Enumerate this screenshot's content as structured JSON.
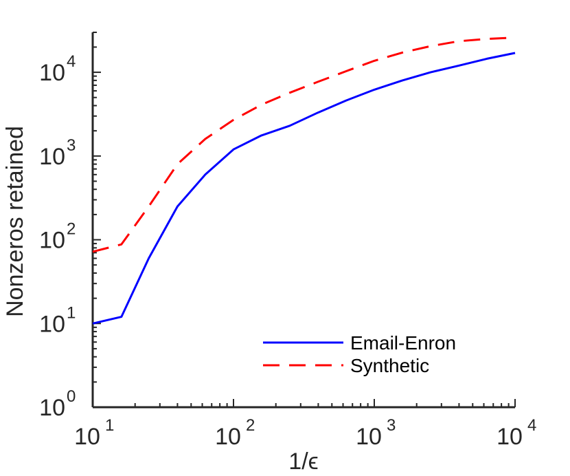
{
  "chart_data": {
    "type": "line",
    "title": "",
    "xlabel": "1/ϵ",
    "ylabel": "Nonzeros retained",
    "x_scale": "log",
    "y_scale": "log",
    "xlim": [
      10,
      10000
    ],
    "ylim": [
      1,
      30000
    ],
    "x_ticks": [
      {
        "base": "10",
        "exp": "1",
        "value": 10
      },
      {
        "base": "10",
        "exp": "2",
        "value": 100
      },
      {
        "base": "10",
        "exp": "3",
        "value": 1000
      },
      {
        "base": "10",
        "exp": "4",
        "value": 10000
      }
    ],
    "y_ticks": [
      {
        "base": "10",
        "exp": "0",
        "value": 1
      },
      {
        "base": "10",
        "exp": "1",
        "value": 10
      },
      {
        "base": "10",
        "exp": "2",
        "value": 100
      },
      {
        "base": "10",
        "exp": "3",
        "value": 1000
      },
      {
        "base": "10",
        "exp": "4",
        "value": 10000
      }
    ],
    "grid": false,
    "legend_position": "bottom-right",
    "series": [
      {
        "name": "Email-Enron",
        "color": "#0000ff",
        "style": "solid",
        "x": [
          10,
          16,
          25,
          40,
          63,
          100,
          158,
          251,
          398,
          631,
          1000,
          1585,
          2512,
          3981,
          6310,
          10000
        ],
        "y": [
          10,
          12,
          60,
          250,
          600,
          1200,
          1760,
          2300,
          3300,
          4600,
          6200,
          8000,
          10000,
          12000,
          14500,
          17000
        ]
      },
      {
        "name": "Synthetic",
        "color": "#ff0000",
        "style": "dashed",
        "x": [
          10,
          16,
          25,
          40,
          63,
          100,
          158,
          251,
          398,
          631,
          1000,
          1585,
          2512,
          3981,
          6310,
          10000
        ],
        "y": [
          72,
          88,
          250,
          800,
          1600,
          2700,
          4100,
          5700,
          7700,
          10300,
          13700,
          17200,
          20500,
          23500,
          25000,
          26000
        ]
      }
    ]
  }
}
